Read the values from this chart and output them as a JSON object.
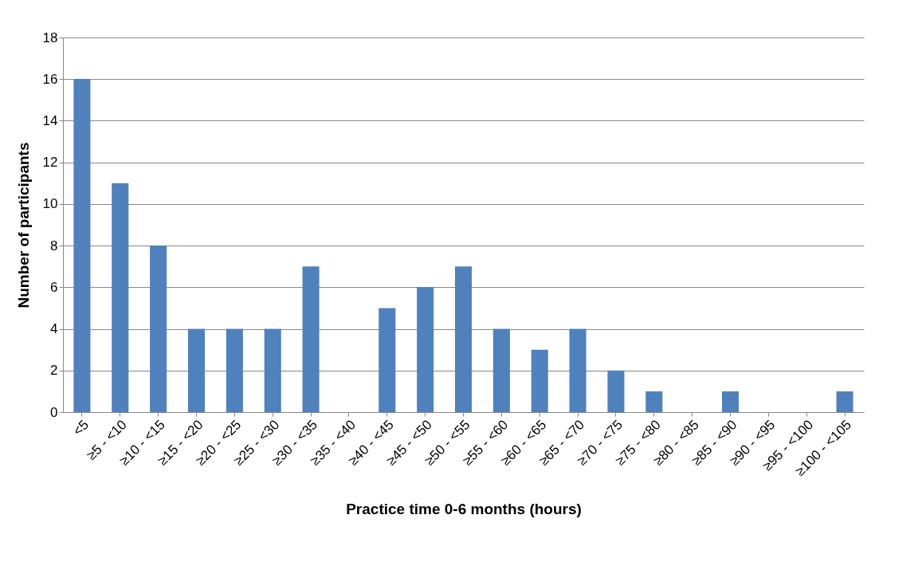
{
  "chart_data": {
    "type": "bar",
    "xlabel": "Practice time 0-6 months (hours)",
    "ylabel": "Number of participants",
    "categories": [
      "<5",
      "≥5 - <10",
      "≥10 - <15",
      "≥15 - <20",
      "≥20 - <25",
      "≥25 - <30",
      "≥30 - <35",
      "≥35 - <40",
      "≥40 - <45",
      "≥45 - <50",
      "≥50 - <55",
      "≥55 - <60",
      "≥60 - <65",
      "≥65 - <70",
      "≥70 - <75",
      "≥75 - <80",
      "≥80 - <85",
      "≥85 - <90",
      "≥90 - <95",
      "≥95 - <100",
      "≥100 - <105"
    ],
    "values": [
      16,
      11,
      8,
      4,
      4,
      4,
      7,
      0,
      5,
      6,
      7,
      4,
      3,
      4,
      2,
      1,
      0,
      1,
      0,
      0,
      1
    ],
    "color": "#4f81bd",
    "ylim": [
      0,
      18
    ],
    "yticks": [
      0,
      2,
      4,
      6,
      8,
      10,
      12,
      14,
      16,
      18
    ],
    "grid": "y"
  }
}
